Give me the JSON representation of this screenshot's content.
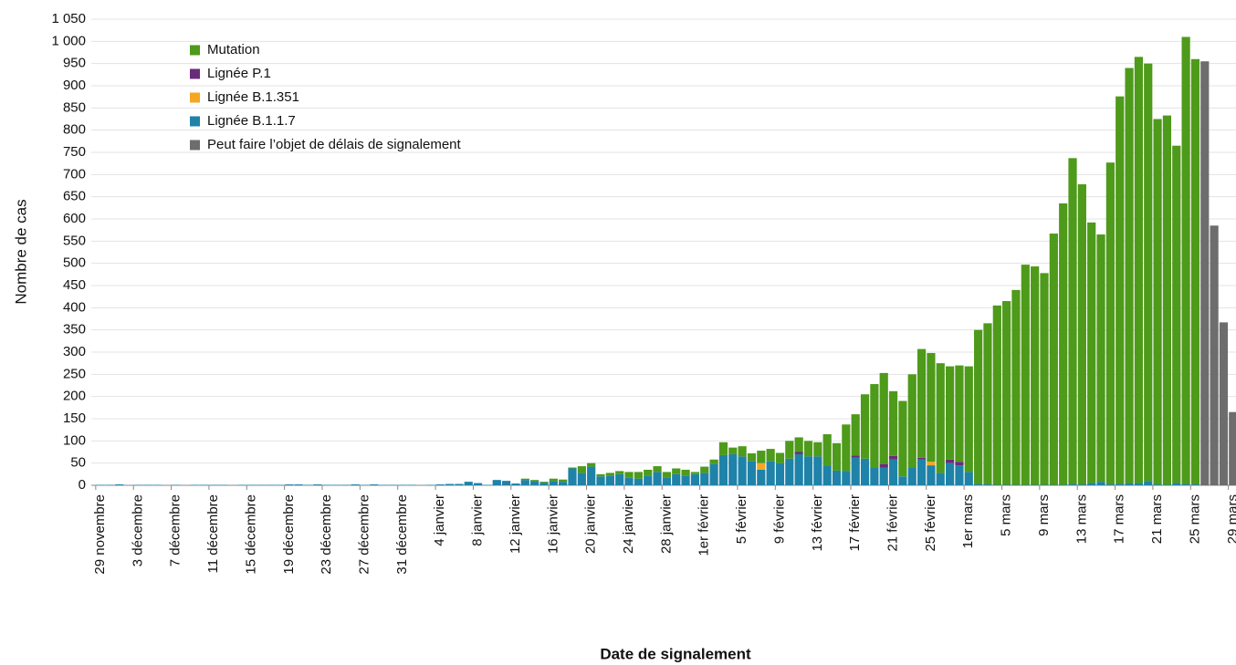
{
  "chart_data": {
    "type": "stacked_bar",
    "y_label": "Nombre de cas",
    "x_label": "Date de signalement",
    "ylim": [
      0,
      1050
    ],
    "yticks": [
      0,
      50,
      100,
      150,
      200,
      250,
      300,
      350,
      400,
      450,
      500,
      550,
      600,
      650,
      700,
      750,
      800,
      850,
      900,
      950,
      {
        "value": 1000,
        "label": "1 000"
      },
      {
        "value": 1050,
        "label": "1 050"
      }
    ],
    "grid": true,
    "legend": "upper left",
    "categories": [
      "29 novembre",
      null,
      null,
      null,
      "3 décembre",
      null,
      null,
      null,
      "7 décembre",
      null,
      null,
      null,
      "11 décembre",
      null,
      null,
      null,
      "15 décembre",
      null,
      null,
      null,
      "19 décembre",
      null,
      null,
      null,
      "23 décembre",
      null,
      null,
      null,
      "27 décembre",
      null,
      null,
      null,
      "31 décembre",
      null,
      null,
      null,
      "4 janvier",
      null,
      null,
      null,
      "8 janvier",
      null,
      null,
      null,
      "12 janvier",
      null,
      null,
      null,
      "16 janvier",
      null,
      null,
      null,
      "20 janvier",
      null,
      null,
      null,
      "24 janvier",
      null,
      null,
      null,
      "28 janvier",
      null,
      null,
      null,
      "1er février",
      null,
      null,
      null,
      "5 février",
      null,
      null,
      null,
      "9 février",
      null,
      null,
      null,
      "13 février",
      null,
      null,
      null,
      "17 février",
      null,
      null,
      null,
      "21 février",
      null,
      null,
      null,
      "25 février",
      null,
      null,
      null,
      "1er mars",
      null,
      null,
      null,
      "5 mars",
      null,
      null,
      null,
      "9 mars",
      null,
      null,
      null,
      "13 mars",
      null,
      null,
      null,
      "17 mars",
      null,
      null,
      null,
      "21 mars",
      null,
      null,
      null,
      "25 mars",
      null,
      null,
      null,
      "29 mars"
    ],
    "series": [
      {
        "name": "Mutation",
        "color": "#4e9a1a",
        "values": [
          0,
          0,
          0,
          0,
          0,
          0,
          0,
          0,
          0,
          0,
          0,
          0,
          0,
          0,
          0,
          0,
          0,
          0,
          0,
          0,
          0,
          0,
          0,
          0,
          0,
          0,
          0,
          0,
          0,
          0,
          0,
          0,
          0,
          0,
          0,
          0,
          0,
          0,
          0,
          0,
          0,
          0,
          0,
          0,
          0,
          3,
          2,
          2,
          5,
          5,
          2,
          15,
          8,
          5,
          6,
          7,
          13,
          15,
          13,
          13,
          12,
          13,
          13,
          5,
          14,
          10,
          29,
          15,
          23,
          17,
          28,
          27,
          23,
          40,
          33,
          35,
          32,
          70,
          62,
          105,
          93,
          145,
          188,
          205,
          146,
          170,
          210,
          245,
          245,
          247,
          210,
          217,
          238,
          347,
          363,
          404,
          414,
          439,
          496,
          492,
          477,
          566,
          634,
          734,
          676,
          587,
          557,
          725,
          873,
          935,
          960,
          940,
          823,
          832,
          760,
          1007,
          958,
          null,
          null,
          null,
          null
        ]
      },
      {
        "name": "Lignée P.1",
        "color": "#6a2c7a",
        "values": [
          0,
          0,
          0,
          0,
          0,
          0,
          0,
          0,
          0,
          0,
          0,
          0,
          0,
          0,
          0,
          0,
          0,
          0,
          0,
          0,
          0,
          0,
          0,
          0,
          0,
          0,
          0,
          0,
          0,
          0,
          0,
          0,
          0,
          0,
          0,
          0,
          0,
          0,
          0,
          0,
          0,
          0,
          0,
          0,
          0,
          0,
          0,
          0,
          0,
          0,
          0,
          0,
          0,
          0,
          0,
          0,
          0,
          0,
          0,
          0,
          0,
          0,
          0,
          0,
          0,
          0,
          0,
          0,
          0,
          0,
          0,
          0,
          0,
          0,
          5,
          0,
          0,
          0,
          0,
          0,
          5,
          0,
          0,
          8,
          8,
          0,
          0,
          4,
          0,
          0,
          8,
          8,
          0,
          0,
          0,
          0,
          0,
          0,
          0,
          0,
          0,
          0,
          0,
          0,
          0,
          0,
          0,
          0,
          0,
          0,
          0,
          0,
          0,
          0,
          0,
          0,
          0,
          null,
          null,
          null,
          null
        ]
      },
      {
        "name": "Lignée B.1.351",
        "color": "#f5a623",
        "values": [
          0,
          0,
          0,
          0,
          0,
          0,
          0,
          0,
          0,
          0,
          0,
          0,
          0,
          0,
          0,
          0,
          0,
          0,
          0,
          0,
          0,
          0,
          0,
          0,
          0,
          0,
          0,
          0,
          0,
          0,
          0,
          0,
          0,
          0,
          0,
          0,
          0,
          0,
          0,
          0,
          0,
          0,
          0,
          0,
          0,
          0,
          0,
          0,
          0,
          0,
          0,
          0,
          0,
          0,
          0,
          0,
          0,
          0,
          0,
          0,
          0,
          0,
          0,
          0,
          0,
          0,
          0,
          0,
          0,
          0,
          15,
          0,
          0,
          0,
          0,
          0,
          0,
          0,
          0,
          0,
          0,
          0,
          0,
          0,
          0,
          0,
          0,
          0,
          8,
          0,
          0,
          0,
          0,
          0,
          0,
          0,
          0,
          0,
          0,
          0,
          0,
          0,
          0,
          0,
          0,
          0,
          0,
          0,
          0,
          0,
          0,
          0,
          0,
          0,
          0,
          0,
          0,
          null,
          null,
          null,
          null
        ]
      },
      {
        "name": "Lignée B.1.1.7",
        "color": "#1f82a8",
        "values": [
          1,
          1,
          2,
          0,
          1,
          1,
          1,
          0,
          1,
          0,
          1,
          1,
          1,
          1,
          0,
          1,
          1,
          1,
          1,
          1,
          2,
          2,
          1,
          2,
          1,
          1,
          1,
          2,
          1,
          2,
          1,
          1,
          1,
          1,
          0,
          1,
          2,
          3,
          3,
          8,
          5,
          1,
          12,
          10,
          4,
          12,
          10,
          6,
          10,
          8,
          38,
          28,
          42,
          20,
          22,
          25,
          17,
          15,
          22,
          30,
          18,
          25,
          22,
          25,
          28,
          48,
          68,
          70,
          65,
          55,
          35,
          55,
          50,
          60,
          70,
          65,
          65,
          45,
          33,
          32,
          62,
          60,
          40,
          40,
          58,
          20,
          40,
          58,
          45,
          28,
          50,
          45,
          30,
          3,
          2,
          1,
          1,
          1,
          1,
          1,
          1,
          1,
          1,
          3,
          2,
          5,
          8,
          2,
          3,
          5,
          5,
          10,
          2,
          1,
          5,
          3,
          2,
          null,
          null,
          null,
          null
        ]
      },
      {
        "name": "Peut faire l’objet de délais de signalement",
        "color": "#6d6d6d",
        "values": [
          null,
          null,
          null,
          null,
          null,
          null,
          null,
          null,
          null,
          null,
          null,
          null,
          null,
          null,
          null,
          null,
          null,
          null,
          null,
          null,
          null,
          null,
          null,
          null,
          null,
          null,
          null,
          null,
          null,
          null,
          null,
          null,
          null,
          null,
          null,
          null,
          null,
          null,
          null,
          null,
          null,
          null,
          null,
          null,
          null,
          null,
          null,
          null,
          null,
          null,
          null,
          null,
          null,
          null,
          null,
          null,
          null,
          null,
          null,
          null,
          null,
          null,
          null,
          null,
          null,
          null,
          null,
          null,
          null,
          null,
          null,
          null,
          null,
          null,
          null,
          null,
          null,
          null,
          null,
          null,
          null,
          null,
          null,
          null,
          null,
          null,
          null,
          null,
          null,
          null,
          null,
          null,
          null,
          null,
          null,
          null,
          null,
          null,
          null,
          null,
          null,
          null,
          null,
          null,
          null,
          null,
          null,
          null,
          null,
          null,
          null,
          null,
          null,
          null,
          null,
          null,
          null,
          955,
          585,
          367,
          165
        ]
      }
    ]
  }
}
